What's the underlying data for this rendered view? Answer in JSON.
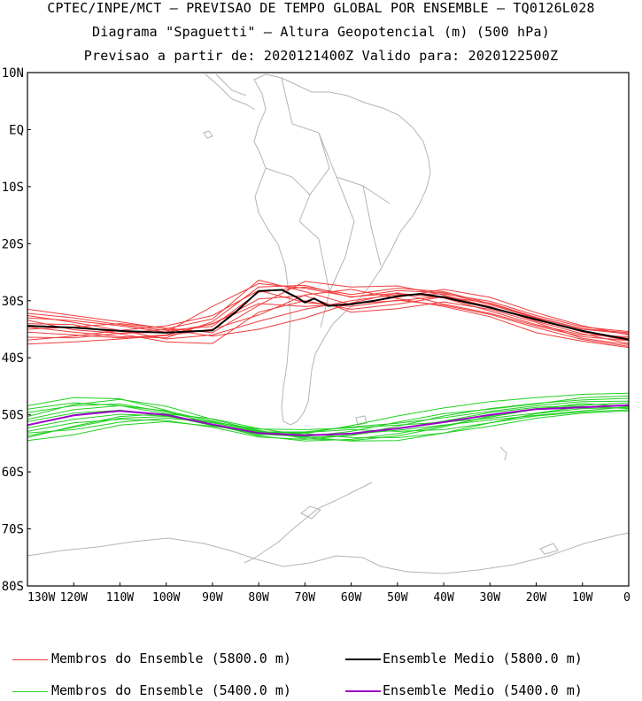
{
  "title": {
    "line1": "CPTEC/INPE/MCT – PREVISAO DE TEMPO GLOBAL POR ENSEMBLE – TQ0126L028",
    "line2": "Diagrama \"Spaguetti\" – Altura Geopotencial (m) (500 hPa)",
    "line3": "Previsao a partir de: 2020121400Z  Valido para: 2020122500Z"
  },
  "axes": {
    "lat_labels": [
      "10N",
      "EQ",
      "10S",
      "20S",
      "30S",
      "40S",
      "50S",
      "60S",
      "70S",
      "80S"
    ],
    "lat_values": [
      10,
      0,
      -10,
      -20,
      -30,
      -40,
      -50,
      -60,
      -70,
      -80
    ],
    "lon_labels": [
      "130W",
      "120W",
      "110W",
      "100W",
      "90W",
      "80W",
      "70W",
      "60W",
      "50W",
      "40W",
      "30W",
      "20W",
      "10W",
      "0"
    ],
    "lon_values": [
      -130,
      -120,
      -110,
      -100,
      -90,
      -80,
      -70,
      -60,
      -50,
      -40,
      -30,
      -20,
      -10,
      0
    ],
    "lon_range": [
      -130,
      0
    ],
    "lat_range": [
      -80,
      10
    ]
  },
  "legend": {
    "red_members": "Membros do Ensemble (5800.0 m)",
    "black_mean": "Ensemble Medio (5800.0 m)",
    "green_members": "Membros do Ensemble (5400.0 m)",
    "purple_mean": "Ensemble Medio (5400.0 m)"
  },
  "colors": {
    "red_members": "#f03c3c",
    "black_mean": "#000000",
    "green_members": "#22d022",
    "purple_mean": "#9a00c8",
    "coastline": "#b4b4b4"
  },
  "chart_data": {
    "type": "line",
    "x_unit": "longitude (deg, negative = W)",
    "y_unit": "latitude (deg, negative = S)",
    "series": [
      {
        "name": "Ensemble Medio (5800.0 m)",
        "x": [
          -130,
          -120,
          -110,
          -100,
          -90,
          -85,
          -80,
          -75,
          -72,
          -70,
          -68,
          -65,
          -60,
          -55,
          -50,
          -45,
          -40,
          -30,
          -20,
          -10,
          0
        ],
        "y": [
          -34.4,
          -34.7,
          -35.3,
          -35.6,
          -35.2,
          -32,
          -28.3,
          -28.1,
          -29.3,
          -30.3,
          -29.6,
          -30.9,
          -30.6,
          -30,
          -29.2,
          -28.8,
          -29.4,
          -31.2,
          -33.3,
          -35.3,
          -36.8
        ]
      },
      {
        "name": "Ensemble Medio (5400.0 m)",
        "x": [
          -130,
          -120,
          -110,
          -100,
          -90,
          -80,
          -70,
          -60,
          -50,
          -40,
          -30,
          -20,
          -10,
          0
        ],
        "y": [
          -51.8,
          -50.1,
          -49.3,
          -50,
          -51.7,
          -53.2,
          -53.6,
          -53.3,
          -52.4,
          -51.3,
          -50,
          -49,
          -48.7,
          -48.3
        ]
      },
      {
        "name": "Membros do Ensemble (5800.0 m)",
        "members": [
          {
            "x": [
              -130,
              -120,
              -110,
              -100,
              -90,
              -80,
              -70,
              -60,
              -50,
              -40,
              -30,
              -20,
              -10,
              0
            ],
            "y": [
              -32.2,
              -33,
              -34.2,
              -35.2,
              -34.5,
              -28.5,
              -27.6,
              -28.9,
              -27.8,
              -28.4,
              -30.5,
              -33,
              -35,
              -35.8
            ]
          },
          {
            "x": [
              -130,
              -120,
              -110,
              -100,
              -90,
              -80,
              -70,
              -60,
              -50,
              -40,
              -30,
              -20,
              -10,
              0
            ],
            "y": [
              -35.5,
              -36,
              -36.5,
              -36,
              -34,
              -30.5,
              -31,
              -30.5,
              -30,
              -29.2,
              -31,
              -33.6,
              -35.8,
              -37.5
            ]
          },
          {
            "x": [
              -130,
              -120,
              -110,
              -100,
              -90,
              -80,
              -70,
              -60,
              -50,
              -40,
              -30,
              -20,
              -10,
              0
            ],
            "y": [
              -33,
              -33.5,
              -34.4,
              -35.5,
              -31,
              -27,
              -27.8,
              -29.3,
              -28.7,
              -29.5,
              -31.8,
              -34.2,
              -36,
              -36.3
            ]
          },
          {
            "x": [
              -130,
              -120,
              -110,
              -100,
              -90,
              -80,
              -70,
              -60,
              -50,
              -40,
              -30,
              -20,
              -10,
              0
            ],
            "y": [
              -37.6,
              -37.2,
              -36.7,
              -36.1,
              -35,
              -32.5,
              -29,
              -28,
              -29.6,
              -31,
              -32.8,
              -35.6,
              -37.1,
              -38.2
            ]
          },
          {
            "x": [
              -130,
              -120,
              -110,
              -100,
              -90,
              -80,
              -70,
              -60,
              -50,
              -40,
              -30,
              -20,
              -10,
              0
            ],
            "y": [
              -34,
              -34.2,
              -35.8,
              -37.2,
              -37.5,
              -32,
              -30,
              -31.5,
              -30.6,
              -29.3,
              -30.4,
              -32.9,
              -34.9,
              -35.6
            ]
          },
          {
            "x": [
              -130,
              -120,
              -110,
              -100,
              -90,
              -80,
              -70,
              -60,
              -50,
              -40,
              -30,
              -20,
              -10,
              0
            ],
            "y": [
              -31.5,
              -32.6,
              -33.7,
              -34.9,
              -33.2,
              -26.4,
              -28.4,
              -30.7,
              -29.4,
              -28,
              -29.4,
              -32.1,
              -34.4,
              -36
            ]
          },
          {
            "x": [
              -130,
              -120,
              -110,
              -100,
              -90,
              -80,
              -70,
              -60,
              -50,
              -40,
              -30,
              -20,
              -10,
              0
            ],
            "y": [
              -36.4,
              -36.5,
              -35.7,
              -35,
              -36.2,
              -35,
              -33,
              -30.4,
              -28.6,
              -30.6,
              -32.2,
              -34.4,
              -36.3,
              -37
            ]
          },
          {
            "x": [
              -130,
              -120,
              -110,
              -100,
              -90,
              -80,
              -70,
              -60,
              -50,
              -40,
              -30,
              -20,
              -10,
              0
            ],
            "y": [
              -33.4,
              -35.1,
              -35.7,
              -35.5,
              -34.1,
              -29.7,
              -29.1,
              -32,
              -31.4,
              -30.2,
              -31.5,
              -33.8,
              -36.6,
              -37.7
            ]
          },
          {
            "x": [
              -130,
              -120,
              -110,
              -100,
              -90,
              -80,
              -70,
              -60,
              -50,
              -40,
              -30,
              -20,
              -10,
              0
            ],
            "y": [
              -35,
              -34.6,
              -34,
              -34.8,
              -35.6,
              -30.8,
              -26.6,
              -27.6,
              -27.4,
              -29,
              -31.1,
              -33.4,
              -35.4,
              -36.6
            ]
          },
          {
            "x": [
              -130,
              -120,
              -110,
              -100,
              -90,
              -80,
              -70,
              -60,
              -50,
              -40,
              -30,
              -20,
              -10,
              0
            ],
            "y": [
              -32.6,
              -33.8,
              -35.2,
              -36.7,
              -36,
              -33.6,
              -31.5,
              -30,
              -28.9,
              -28.8,
              -30.1,
              -32.6,
              -34.6,
              -35.4
            ]
          },
          {
            "x": [
              -130,
              -120,
              -110,
              -100,
              -90,
              -80,
              -70,
              -60,
              -50,
              -40,
              -30,
              -20,
              -10,
              0
            ],
            "y": [
              -36.9,
              -36.2,
              -35.2,
              -34.4,
              -32.6,
              -28.2,
              -30.3,
              -31,
              -29.9,
              -30.8,
              -32.4,
              -34.7,
              -36.8,
              -38
            ]
          },
          {
            "x": [
              -130,
              -120,
              -110,
              -100,
              -90,
              -80,
              -70,
              -60,
              -50,
              -40,
              -30,
              -20,
              -10,
              0
            ],
            "y": [
              -34.6,
              -35.5,
              -36.3,
              -36.5,
              -33.7,
              -27.6,
              -27.3,
              -29.4,
              -28.2,
              -28.6,
              -30.7,
              -33.1,
              -35.5,
              -37
            ]
          }
        ]
      },
      {
        "name": "Membros do Ensemble (5400.0 m)",
        "members": [
          {
            "x": [
              -130,
              -120,
              -110,
              -100,
              -90,
              -80,
              -70,
              -60,
              -50,
              -40,
              -30,
              -20,
              -10,
              0
            ],
            "y": [
              -49,
              -47.9,
              -48.4,
              -49.8,
              -51.8,
              -53.4,
              -53.8,
              -52.9,
              -51.3,
              -49.8,
              -49,
              -48.1,
              -47,
              -46.7
            ]
          },
          {
            "x": [
              -130,
              -120,
              -110,
              -100,
              -90,
              -80,
              -70,
              -60,
              -50,
              -40,
              -30,
              -20,
              -10,
              0
            ],
            "y": [
              -54.5,
              -53.5,
              -51.8,
              -51.2,
              -52,
              -53,
              -53.3,
              -54,
              -54,
              -53.2,
              -52,
              -50.6,
              -49.7,
              -49.3
            ]
          },
          {
            "x": [
              -130,
              -120,
              -110,
              -100,
              -90,
              -80,
              -70,
              -60,
              -50,
              -40,
              -30,
              -20,
              -10,
              0
            ],
            "y": [
              -50.3,
              -48.2,
              -47.3,
              -48.5,
              -50.8,
              -52.8,
              -54,
              -53.6,
              -52,
              -50.2,
              -48.9,
              -48,
              -47.4,
              -47.1
            ]
          },
          {
            "x": [
              -130,
              -120,
              -110,
              -100,
              -90,
              -80,
              -70,
              -60,
              -50,
              -40,
              -30,
              -20,
              -10,
              0
            ],
            "y": [
              -53.2,
              -52.6,
              -51.3,
              -50.6,
              -51.3,
              -52.5,
              -52.6,
              -52.3,
              -51.8,
              -51.3,
              -50.6,
              -49.7,
              -48.6,
              -48.4
            ]
          },
          {
            "x": [
              -130,
              -120,
              -110,
              -100,
              -90,
              -80,
              -70,
              -60,
              -50,
              -40,
              -30,
              -20,
              -10,
              0
            ],
            "y": [
              -48.4,
              -47,
              -47.2,
              -49.2,
              -51.7,
              -53.7,
              -54.6,
              -54.3,
              -53.3,
              -51.9,
              -50.4,
              -49,
              -48,
              -48.6
            ]
          },
          {
            "x": [
              -130,
              -120,
              -110,
              -100,
              -90,
              -80,
              -70,
              -60,
              -50,
              -40,
              -30,
              -20,
              -10,
              0
            ],
            "y": [
              -52.3,
              -50.8,
              -49.9,
              -50.2,
              -51.8,
              -53.5,
              -53.3,
              -51.9,
              -50.2,
              -48.8,
              -47.7,
              -47,
              -46.4,
              -46.2
            ]
          },
          {
            "x": [
              -130,
              -120,
              -110,
              -100,
              -90,
              -80,
              -70,
              -60,
              -50,
              -40,
              -30,
              -20,
              -10,
              0
            ],
            "y": [
              -50.8,
              -49.1,
              -48.4,
              -49.3,
              -51.1,
              -52.9,
              -53.9,
              -54.6,
              -54.5,
              -53.2,
              -51.4,
              -49.8,
              -48.9,
              -48.7
            ]
          },
          {
            "x": [
              -130,
              -120,
              -110,
              -100,
              -90,
              -80,
              -70,
              -60,
              -50,
              -40,
              -30,
              -20,
              -10,
              0
            ],
            "y": [
              -54,
              -52,
              -50.3,
              -49.8,
              -50.7,
              -52.4,
              -53.6,
              -53.4,
              -52.7,
              -51.8,
              -50.9,
              -50.1,
              -49.3,
              -48.6
            ]
          },
          {
            "x": [
              -130,
              -120,
              -110,
              -100,
              -90,
              -80,
              -70,
              -60,
              -50,
              -40,
              -30,
              -20,
              -10,
              0
            ],
            "y": [
              -49.6,
              -48.4,
              -48.1,
              -49.5,
              -51.4,
              -53,
              -53,
              -52.1,
              -51.5,
              -50.5,
              -49.4,
              -48.4,
              -47.7,
              -47.6
            ]
          },
          {
            "x": [
              -130,
              -120,
              -110,
              -100,
              -90,
              -80,
              -70,
              -60,
              -50,
              -40,
              -30,
              -20,
              -10,
              0
            ],
            "y": [
              -52.9,
              -51.4,
              -50.8,
              -51,
              -52.2,
              -53.9,
              -54.3,
              -53.6,
              -52.4,
              -51.1,
              -49.6,
              -48.7,
              -48.3,
              -47.9
            ]
          },
          {
            "x": [
              -130,
              -120,
              -110,
              -100,
              -90,
              -80,
              -70,
              -60,
              -50,
              -40,
              -30,
              -20,
              -10,
              0
            ],
            "y": [
              -51.2,
              -49.7,
              -49.2,
              -50.1,
              -51.9,
              -53.2,
              -53.1,
              -52.6,
              -52.9,
              -52.6,
              -51.4,
              -50.2,
              -49.5,
              -49.1
            ]
          },
          {
            "x": [
              -130,
              -120,
              -110,
              -100,
              -90,
              -80,
              -70,
              -60,
              -50,
              -40,
              -30,
              -20,
              -10,
              0
            ],
            "y": [
              -53.7,
              -52.2,
              -50.6,
              -50.3,
              -51.2,
              -52.7,
              -54.2,
              -54.5,
              -53.7,
              -52.1,
              -50.2,
              -48.9,
              -48.5,
              -48.9
            ]
          }
        ]
      }
    ]
  }
}
